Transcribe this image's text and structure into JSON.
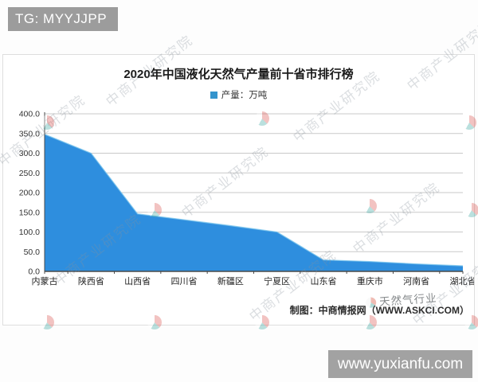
{
  "page": {
    "header_tag": "TG: MYYJJPP",
    "footer_url": "www.yuxianfu.com"
  },
  "chart": {
    "title": "2020年中国液化天然气产量前十省市排行榜",
    "legend_label": "产量：万吨",
    "attribution": "制图：中商情报网（WWW.ASKCI.COM）",
    "watermark_text": "中商产业研究院",
    "overlay_watermark": "天然气行业",
    "colors": {
      "area_fill": "#2e8ede",
      "area_edge": "#7cc6ec",
      "legend_square": "#3494cd",
      "grid": "#c9c9c9",
      "axis": "#4a4a4a",
      "header_bar": "#9c9c9c",
      "footer_bar": "#a2a2a2"
    }
  },
  "chart_data": {
    "type": "area",
    "title": "2020年中国液化天然气产量前十省市排行榜",
    "categories": [
      "内蒙古",
      "陕西省",
      "山西省",
      "四川省",
      "新疆区",
      "宁夏区",
      "山东省",
      "重庆市",
      "河南省",
      "湖北省"
    ],
    "values": [
      348,
      300,
      146,
      131,
      116,
      100,
      29,
      25,
      19,
      14
    ],
    "series_name": "产量",
    "unit": "万吨",
    "ylim": [
      0,
      400
    ],
    "ytick_step": 50,
    "ytick_decimals": 1,
    "grid": true,
    "legend_position": "top"
  }
}
